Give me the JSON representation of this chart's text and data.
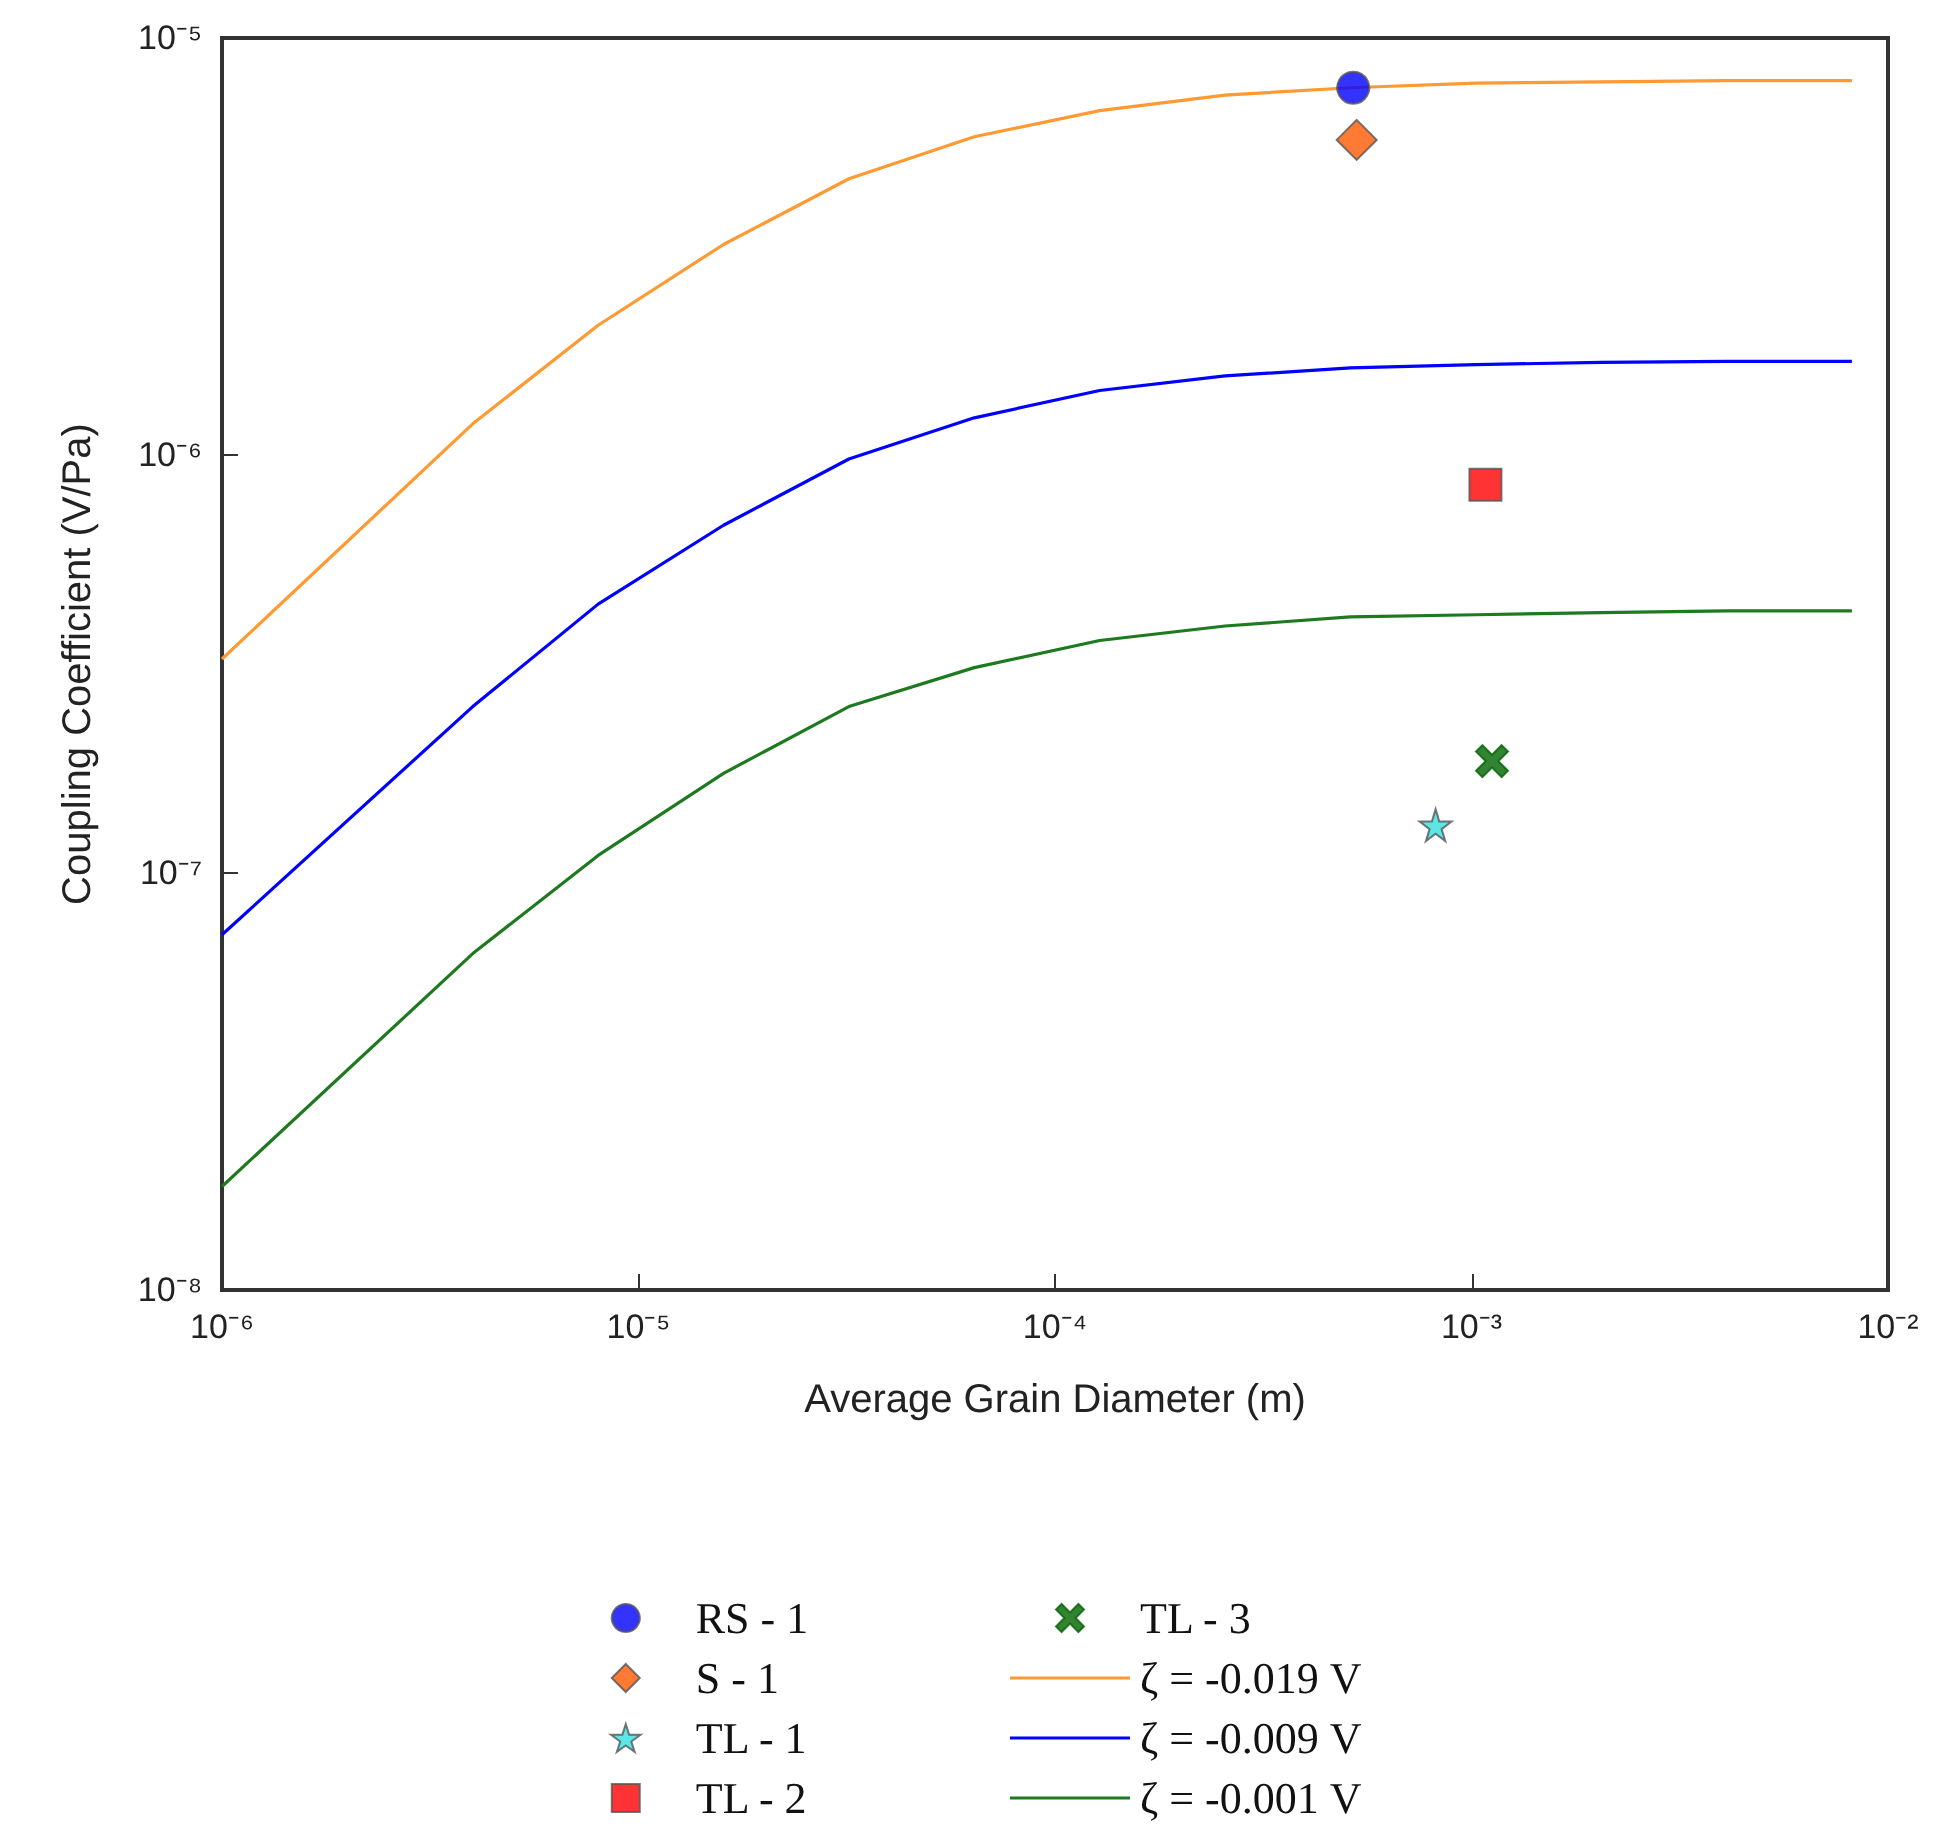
{
  "chart_data": {
    "type": "line",
    "xlabel": "Average Grain Diameter (m)",
    "ylabel": "Coupling Coefficient (V/Pa)",
    "log": "xy",
    "grid": false,
    "legend": "bottom",
    "xlim": [
      1e-06,
      0.01
    ],
    "ylim": [
      1e-08,
      1e-05
    ],
    "xticks": [
      {
        "value": 1e-06,
        "label": "10⁻⁶"
      },
      {
        "value": 1e-05,
        "label": "10⁻⁵"
      },
      {
        "value": 0.0001,
        "label": "10⁻⁴"
      },
      {
        "value": 0.001,
        "label": "10⁻³"
      },
      {
        "value": 0.01,
        "label": "10⁻²"
      }
    ],
    "yticks": [
      {
        "value": 1e-08,
        "label": "10⁻⁸"
      },
      {
        "value": 1e-07,
        "label": "10⁻⁷"
      },
      {
        "value": 1e-06,
        "label": "10⁻⁶"
      },
      {
        "value": 1e-05,
        "label": "10⁻⁵"
      }
    ],
    "series": [
      {
        "name": "RS - 1",
        "type": "scatter",
        "marker": "circle",
        "color": "#0000ff",
        "x": [
          0.00052
        ],
        "values": [
          7.6e-06
        ]
      },
      {
        "name": "S - 1",
        "type": "scatter",
        "marker": "diamond",
        "color": "#ff5a00",
        "x": [
          0.00053
        ],
        "values": [
          5.7e-06
        ]
      },
      {
        "name": "TL - 1",
        "type": "scatter",
        "marker": "star",
        "color": "#33e0e0",
        "x": [
          0.00082
        ],
        "values": [
          1.3e-07
        ]
      },
      {
        "name": "TL - 2",
        "type": "scatter",
        "marker": "square",
        "color": "#ff0000",
        "x": [
          0.00108
        ],
        "values": [
          8.5e-07
        ]
      },
      {
        "name": "TL - 3",
        "type": "scatter",
        "marker": "cross",
        "color": "#006400",
        "x": [
          0.00112
        ],
        "values": [
          1.85e-07
        ]
      },
      {
        "name": "ζ = -0.019 V",
        "marker": "none",
        "color": "#ff9a33",
        "x": [
          1e-06,
          4e-06,
          8e-06,
          1.6e-05,
          3.2e-05,
          6.4e-05,
          0.000128,
          0.000256,
          0.000512,
          0.001024,
          0.002048,
          0.004096,
          0.008192
        ],
        "values": [
          3.25e-07,
          1.19e-06,
          2.05e-06,
          3.2e-06,
          4.6e-06,
          5.8e-06,
          6.7e-06,
          7.3e-06,
          7.6e-06,
          7.8e-06,
          7.85e-06,
          7.9e-06,
          7.9e-06
        ]
      },
      {
        "name": "ζ = -0.009 V",
        "marker": "none",
        "color": "#0000ff",
        "x": [
          1e-06,
          4e-06,
          8e-06,
          1.6e-05,
          3.2e-05,
          6.4e-05,
          0.000128,
          0.000256,
          0.000512,
          0.001024,
          0.002048,
          0.004096,
          0.008192
        ],
        "values": [
          7.1e-08,
          2.5e-07,
          4.4e-07,
          6.8e-07,
          9.8e-07,
          1.23e-06,
          1.43e-06,
          1.55e-06,
          1.62e-06,
          1.65e-06,
          1.67e-06,
          1.68e-06,
          1.68e-06
        ]
      },
      {
        "name": "ζ = -0.001 V",
        "marker": "none",
        "color": "#1e7a1e",
        "x": [
          1e-06,
          4e-06,
          8e-06,
          1.6e-05,
          3.2e-05,
          6.4e-05,
          0.000128,
          0.000256,
          0.000512,
          0.001024,
          0.002048,
          0.004096,
          0.008192
        ],
        "values": [
          1.77e-08,
          6.4e-08,
          1.1e-07,
          1.73e-07,
          2.5e-07,
          3.1e-07,
          3.6e-07,
          3.9e-07,
          4.1e-07,
          4.15e-07,
          4.2e-07,
          4.24e-07,
          4.24e-07
        ]
      }
    ]
  }
}
